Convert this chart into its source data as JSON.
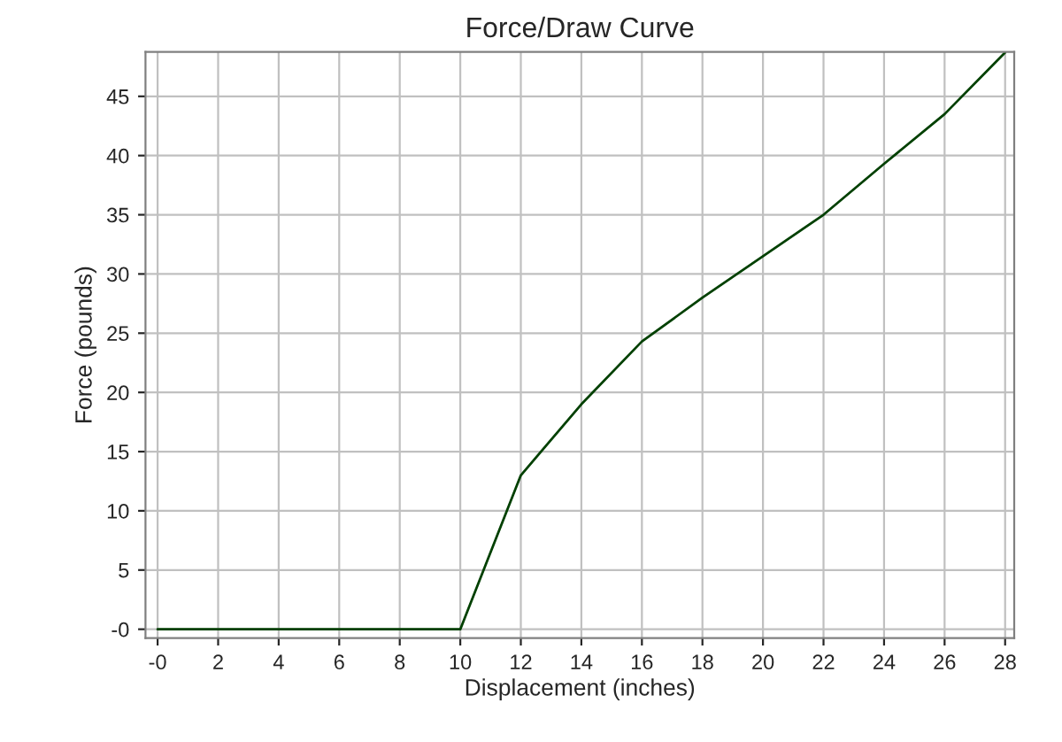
{
  "chart_data": {
    "type": "line",
    "title": "Force/Draw Curve",
    "xlabel": "Displacement (inches)",
    "ylabel": "Force (pounds)",
    "x": [
      0,
      10,
      12,
      14,
      16,
      18,
      20,
      22,
      24,
      26,
      28
    ],
    "series": [
      {
        "color": "#004000",
        "values": [
          0,
          0,
          13,
          19,
          24.3,
          28,
          31.5,
          35,
          39.3,
          43.5,
          48.7
        ]
      }
    ],
    "xlim": [
      -0.4,
      28.3
    ],
    "ylim": [
      -0.75,
      48.75
    ],
    "xticks": [
      {
        "value": 0,
        "label": "-0"
      },
      2,
      4,
      6,
      8,
      10,
      12,
      14,
      16,
      18,
      20,
      22,
      24,
      26,
      28
    ],
    "yticks": [
      {
        "value": 0,
        "label": "-0"
      },
      5,
      10,
      15,
      20,
      25,
      30,
      35,
      40,
      45
    ],
    "grid": true,
    "marker": "none",
    "line_style": "solid"
  }
}
